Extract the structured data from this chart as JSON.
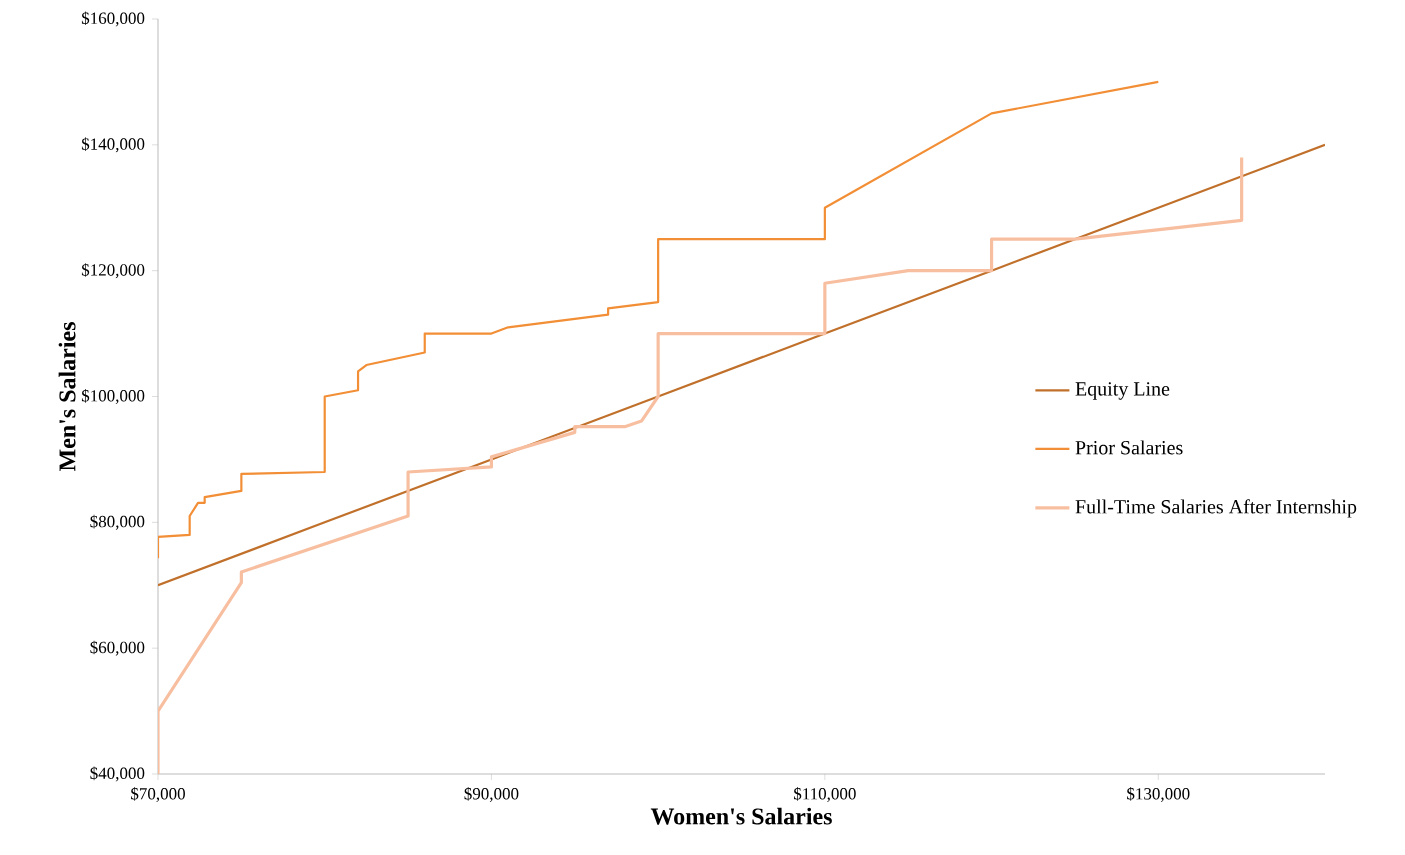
{
  "chart_data": {
    "type": "line",
    "xlabel": "Women's Salaries",
    "ylabel": "Men's Salaries",
    "xlim": [
      70000,
      140000
    ],
    "ylim": [
      40000,
      160000
    ],
    "xticks": [
      {
        "value": 70000,
        "label": "$70,000"
      },
      {
        "value": 90000,
        "label": "$90,000"
      },
      {
        "value": 110000,
        "label": "$110,000"
      },
      {
        "value": 130000,
        "label": "$130,000"
      }
    ],
    "yticks": [
      {
        "value": 40000,
        "label": "$40,000"
      },
      {
        "value": 60000,
        "label": "$60,000"
      },
      {
        "value": 80000,
        "label": "$80,000"
      },
      {
        "value": 100000,
        "label": "$100,000"
      },
      {
        "value": 120000,
        "label": "$120,000"
      },
      {
        "value": 140000,
        "label": "$140,000"
      },
      {
        "value": 160000,
        "label": "$160,000"
      }
    ],
    "grid": false,
    "legend": "right",
    "marker": "none",
    "line_style": "solid",
    "series": [
      {
        "name": "Equity Line",
        "color": "#c0702a",
        "x": [
          70000,
          80000,
          90000,
          100000,
          110000,
          120000,
          130000,
          140000
        ],
        "values": [
          70000,
          80000,
          90000,
          100000,
          110000,
          120000,
          130000,
          140000
        ]
      },
      {
        "name": "Prior Salaries",
        "color": "#f28e35",
        "x": [
          70000,
          70000,
          71900,
          71900,
          72400,
          72800,
          72800,
          75000,
          75000,
          80000,
          80000,
          82000,
          82000,
          82500,
          86000,
          86000,
          90000,
          91000,
          97000,
          97000,
          100000,
          100000,
          110000,
          110000,
          120000,
          130000
        ],
        "values": [
          74300,
          77700,
          78000,
          81000,
          83100,
          83100,
          84000,
          85000,
          87700,
          88000,
          100000,
          101000,
          104000,
          105000,
          107000,
          110000,
          110000,
          111000,
          113000,
          114000,
          115000,
          125000,
          125000,
          130000,
          145000,
          150000
        ]
      },
      {
        "name": "Full-Time Salaries After Internship",
        "color": "#f7bfa0",
        "x": [
          70000,
          70000,
          75000,
          75000,
          85000,
          85000,
          90000,
          90000,
          95000,
          95000,
          98000,
          99000,
          100000,
          100000,
          110000,
          110000,
          115000,
          120000,
          120000,
          125000,
          135000,
          135000
        ],
        "values": [
          40000,
          50000,
          70400,
          72100,
          81000,
          88000,
          88800,
          90400,
          94300,
          95200,
          95200,
          96100,
          100000,
          110000,
          110000,
          118000,
          120000,
          120000,
          125000,
          125000,
          128000,
          138000
        ]
      }
    ]
  }
}
